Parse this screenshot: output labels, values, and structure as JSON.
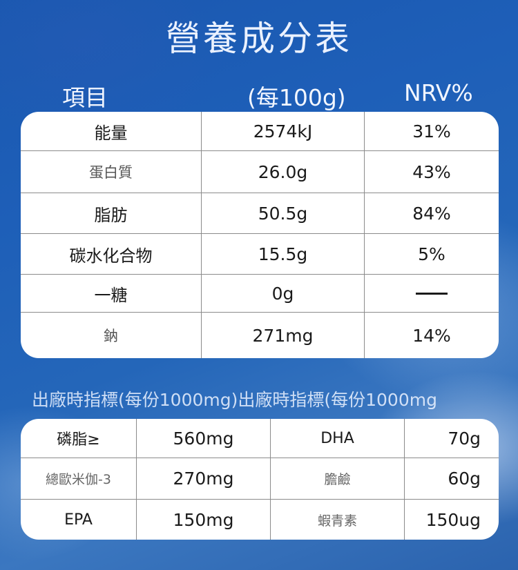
{
  "title": "營養成分表",
  "header": {
    "item": "項目",
    "per": "(每100g)",
    "nrv": "NRV%"
  },
  "nutrition": [
    {
      "name": "能量",
      "value": "2574kJ",
      "nrv": "31%"
    },
    {
      "name": "蛋白質",
      "value": "26.0g",
      "nrv": "43%"
    },
    {
      "name": "脂肪",
      "value": "50.5g",
      "nrv": "84%"
    },
    {
      "name": "碳水化合物",
      "value": "15.5g",
      "nrv": "5%"
    },
    {
      "name": "一糖",
      "value": "0g",
      "nrv": ""
    },
    {
      "name": "鈉",
      "value": "271mg",
      "nrv": "14%"
    }
  ],
  "factory_title": "出廠時指標(每份1000mg)出廠時指標(每份1000mg",
  "factory": [
    {
      "name1": "磷脂≥",
      "value1": "560mg",
      "name2": "DHA",
      "value2": "70g"
    },
    {
      "name1": "總歐米伽-3",
      "value1": "270mg",
      "name2": "膽鹼",
      "value2": "60g"
    },
    {
      "name1": "EPA",
      "value1": "150mg",
      "name2": "蝦青素",
      "value2": "150ug"
    }
  ]
}
